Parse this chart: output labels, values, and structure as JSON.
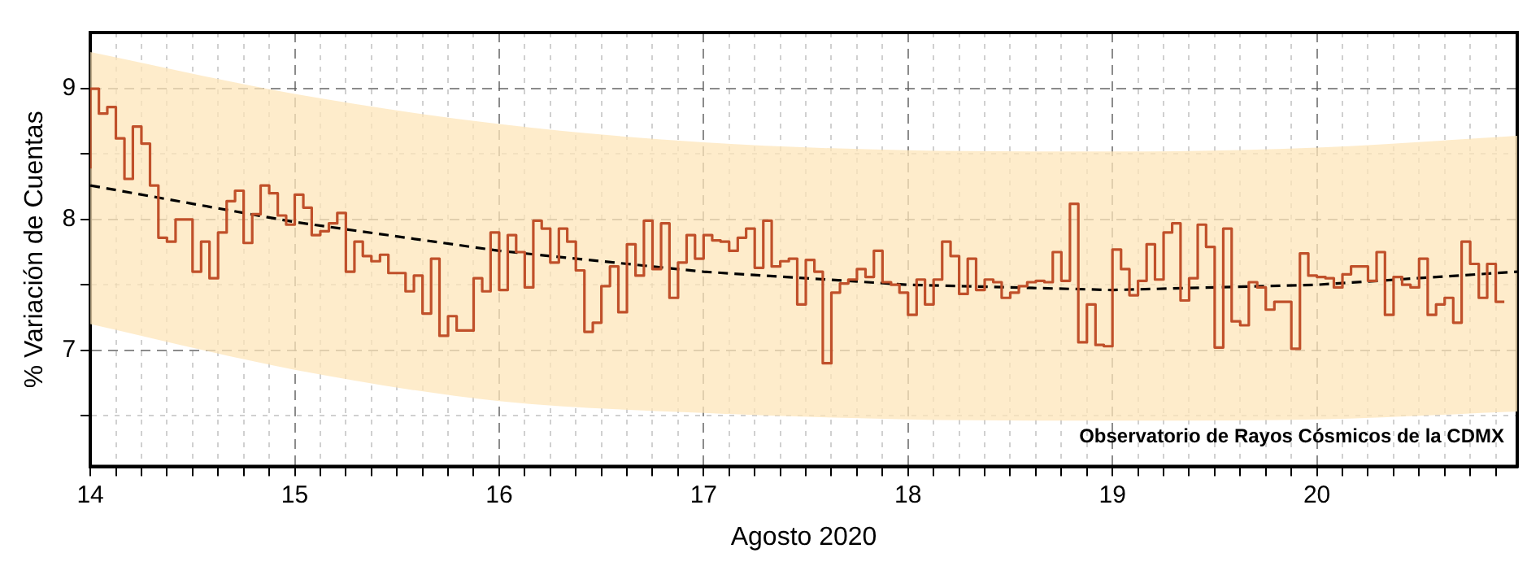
{
  "chart_data": {
    "type": "step",
    "xlabel": "Agosto 2020",
    "ylabel": "% Variación de Cuentas",
    "annotations": [
      "Observatorio de Rayos Cósmicos de la CDMX"
    ],
    "xlim": [
      14,
      20.98
    ],
    "ylim": [
      6.11,
      9.43
    ],
    "xticks": [
      14,
      {
        "value": 14.125,
        "label": null
      },
      {
        "value": 14.25,
        "label": null
      },
      {
        "value": 14.375,
        "label": null
      },
      {
        "value": 14.5,
        "label": null
      },
      {
        "value": 14.625,
        "label": null
      },
      {
        "value": 14.75,
        "label": null
      },
      {
        "value": 14.875,
        "label": null
      },
      15,
      {
        "value": 15.125,
        "label": null
      },
      {
        "value": 15.25,
        "label": null
      },
      {
        "value": 15.375,
        "label": null
      },
      {
        "value": 15.5,
        "label": null
      },
      {
        "value": 15.625,
        "label": null
      },
      {
        "value": 15.75,
        "label": null
      },
      {
        "value": 15.875,
        "label": null
      },
      16,
      {
        "value": 16.125,
        "label": null
      },
      {
        "value": 16.25,
        "label": null
      },
      {
        "value": 16.375,
        "label": null
      },
      {
        "value": 16.5,
        "label": null
      },
      {
        "value": 16.625,
        "label": null
      },
      {
        "value": 16.75,
        "label": null
      },
      {
        "value": 16.875,
        "label": null
      },
      17,
      {
        "value": 17.125,
        "label": null
      },
      {
        "value": 17.25,
        "label": null
      },
      {
        "value": 17.375,
        "label": null
      },
      {
        "value": 17.5,
        "label": null
      },
      {
        "value": 17.625,
        "label": null
      },
      {
        "value": 17.75,
        "label": null
      },
      {
        "value": 17.875,
        "label": null
      },
      18,
      {
        "value": 18.125,
        "label": null
      },
      {
        "value": 18.25,
        "label": null
      },
      {
        "value": 18.375,
        "label": null
      },
      {
        "value": 18.5,
        "label": null
      },
      {
        "value": 18.625,
        "label": null
      },
      {
        "value": 18.75,
        "label": null
      },
      {
        "value": 18.875,
        "label": null
      },
      19,
      {
        "value": 19.125,
        "label": null
      },
      {
        "value": 19.25,
        "label": null
      },
      {
        "value": 19.375,
        "label": null
      },
      {
        "value": 19.5,
        "label": null
      },
      {
        "value": 19.625,
        "label": null
      },
      {
        "value": 19.75,
        "label": null
      },
      {
        "value": 19.875,
        "label": null
      },
      20,
      {
        "value": 20.125,
        "label": null
      },
      {
        "value": 20.25,
        "label": null
      },
      {
        "value": 20.375,
        "label": null
      },
      {
        "value": 20.5,
        "label": null
      },
      {
        "value": 20.625,
        "label": null
      },
      {
        "value": 20.75,
        "label": null
      },
      {
        "value": 20.875,
        "label": null
      }
    ],
    "yticks": [
      {
        "value": 6.5,
        "label": null
      },
      7,
      {
        "value": 7.5,
        "label": null
      },
      8,
      {
        "value": 8.5,
        "label": null
      },
      9
    ],
    "grid": true,
    "legend": false,
    "marker": "none",
    "series": [
      {
        "color": "#c0502a",
        "x": [
          14,
          14.042,
          14.083,
          14.125,
          14.167,
          14.208,
          14.25,
          14.292,
          14.333,
          14.375,
          14.417,
          14.458,
          14.5,
          14.542,
          14.583,
          14.625,
          14.667,
          14.708,
          14.75,
          14.792,
          14.833,
          14.875,
          14.917,
          14.958,
          15,
          15.042,
          15.083,
          15.125,
          15.167,
          15.208,
          15.25,
          15.292,
          15.333,
          15.375,
          15.417,
          15.458,
          15.5,
          15.542,
          15.583,
          15.625,
          15.667,
          15.708,
          15.75,
          15.792,
          15.833,
          15.875,
          15.917,
          15.958,
          16,
          16.042,
          16.083,
          16.125,
          16.167,
          16.208,
          16.25,
          16.292,
          16.333,
          16.375,
          16.417,
          16.458,
          16.5,
          16.542,
          16.583,
          16.625,
          16.667,
          16.708,
          16.75,
          16.792,
          16.833,
          16.875,
          16.917,
          16.958,
          17,
          17.042,
          17.083,
          17.125,
          17.167,
          17.208,
          17.25,
          17.292,
          17.333,
          17.375,
          17.417,
          17.458,
          17.5,
          17.542,
          17.583,
          17.625,
          17.667,
          17.708,
          17.75,
          17.792,
          17.833,
          17.875,
          17.917,
          17.958,
          18,
          18.042,
          18.083,
          18.125,
          18.167,
          18.208,
          18.25,
          18.292,
          18.333,
          18.375,
          18.417,
          18.458,
          18.5,
          18.542,
          18.583,
          18.625,
          18.667,
          18.708,
          18.75,
          18.792,
          18.833,
          18.875,
          18.917,
          18.958,
          19,
          19.042,
          19.083,
          19.125,
          19.167,
          19.208,
          19.25,
          19.292,
          19.333,
          19.375,
          19.417,
          19.458,
          19.5,
          19.542,
          19.583,
          19.625,
          19.667,
          19.708,
          19.75,
          19.792,
          19.833,
          19.875,
          19.917,
          19.958,
          20,
          20.042,
          20.083,
          20.125,
          20.167,
          20.208,
          20.25,
          20.292,
          20.333,
          20.375,
          20.417,
          20.458,
          20.5,
          20.542,
          20.583,
          20.625,
          20.667,
          20.708,
          20.75,
          20.792,
          20.833,
          20.875,
          20.917
        ],
        "values": [
          8.39,
          9.0,
          8.81,
          8.86,
          8.62,
          8.31,
          8.71,
          8.58,
          8.26,
          7.86,
          7.83,
          8.0,
          8.0,
          7.6,
          7.83,
          7.55,
          7.9,
          8.14,
          8.22,
          7.82,
          8.04,
          8.26,
          8.2,
          8.03,
          7.96,
          8.19,
          8.09,
          7.88,
          7.91,
          7.97,
          8.05,
          7.6,
          7.83,
          7.72,
          7.68,
          7.73,
          7.59,
          7.59,
          7.45,
          7.57,
          7.28,
          7.7,
          7.11,
          7.26,
          7.15,
          7.15,
          7.55,
          7.45,
          7.9,
          7.46,
          7.88,
          7.75,
          7.48,
          7.99,
          7.93,
          7.67,
          7.93,
          7.83,
          7.61,
          7.14,
          7.21,
          7.49,
          7.64,
          7.29,
          7.81,
          7.57,
          7.99,
          7.62,
          7.97,
          7.4,
          7.67,
          7.88,
          7.7,
          7.88,
          7.84,
          7.83,
          7.76,
          7.86,
          7.93,
          7.63,
          7.99,
          7.64,
          7.68,
          7.7,
          7.35,
          7.69,
          7.6,
          6.9,
          7.44,
          7.51,
          7.54,
          7.62,
          7.56,
          7.76,
          7.52,
          7.5,
          7.44,
          7.27,
          7.54,
          7.35,
          7.54,
          7.83,
          7.72,
          7.43,
          7.7,
          7.46,
          7.54,
          7.52,
          7.4,
          7.44,
          7.49,
          7.52,
          7.53,
          7.52,
          7.75,
          7.53,
          8.12,
          7.06,
          7.35,
          7.04,
          7.03,
          7.77,
          7.62,
          7.42,
          7.53,
          7.81,
          7.54,
          7.9,
          7.97,
          7.38,
          7.55,
          7.96,
          7.79,
          7.02,
          7.93,
          7.22,
          7.19,
          7.52,
          7.48,
          7.31,
          7.37,
          7.37,
          7.01,
          7.74,
          7.57,
          7.56,
          7.55,
          7.48,
          7.58,
          7.64,
          7.64,
          7.53,
          7.75,
          7.27,
          7.56,
          7.5,
          7.48,
          7.7,
          7.27,
          7.35,
          7.4,
          7.21,
          7.83,
          7.66,
          7.4,
          7.66,
          7.37
        ]
      },
      {
        "type": "line",
        "color": "#000000",
        "line_style": "dashed",
        "x": [
          14,
          15,
          16,
          17,
          18,
          19,
          20,
          20.98
        ],
        "values": [
          8.26,
          7.98,
          7.76,
          7.6,
          7.5,
          7.46,
          7.5,
          7.6
        ],
        "lower": [
          7.2,
          6.85,
          6.61,
          6.52,
          6.47,
          6.46,
          6.47,
          6.53
        ],
        "upper": [
          9.28,
          8.96,
          8.73,
          8.59,
          8.53,
          8.52,
          8.55,
          8.64
        ]
      }
    ]
  }
}
